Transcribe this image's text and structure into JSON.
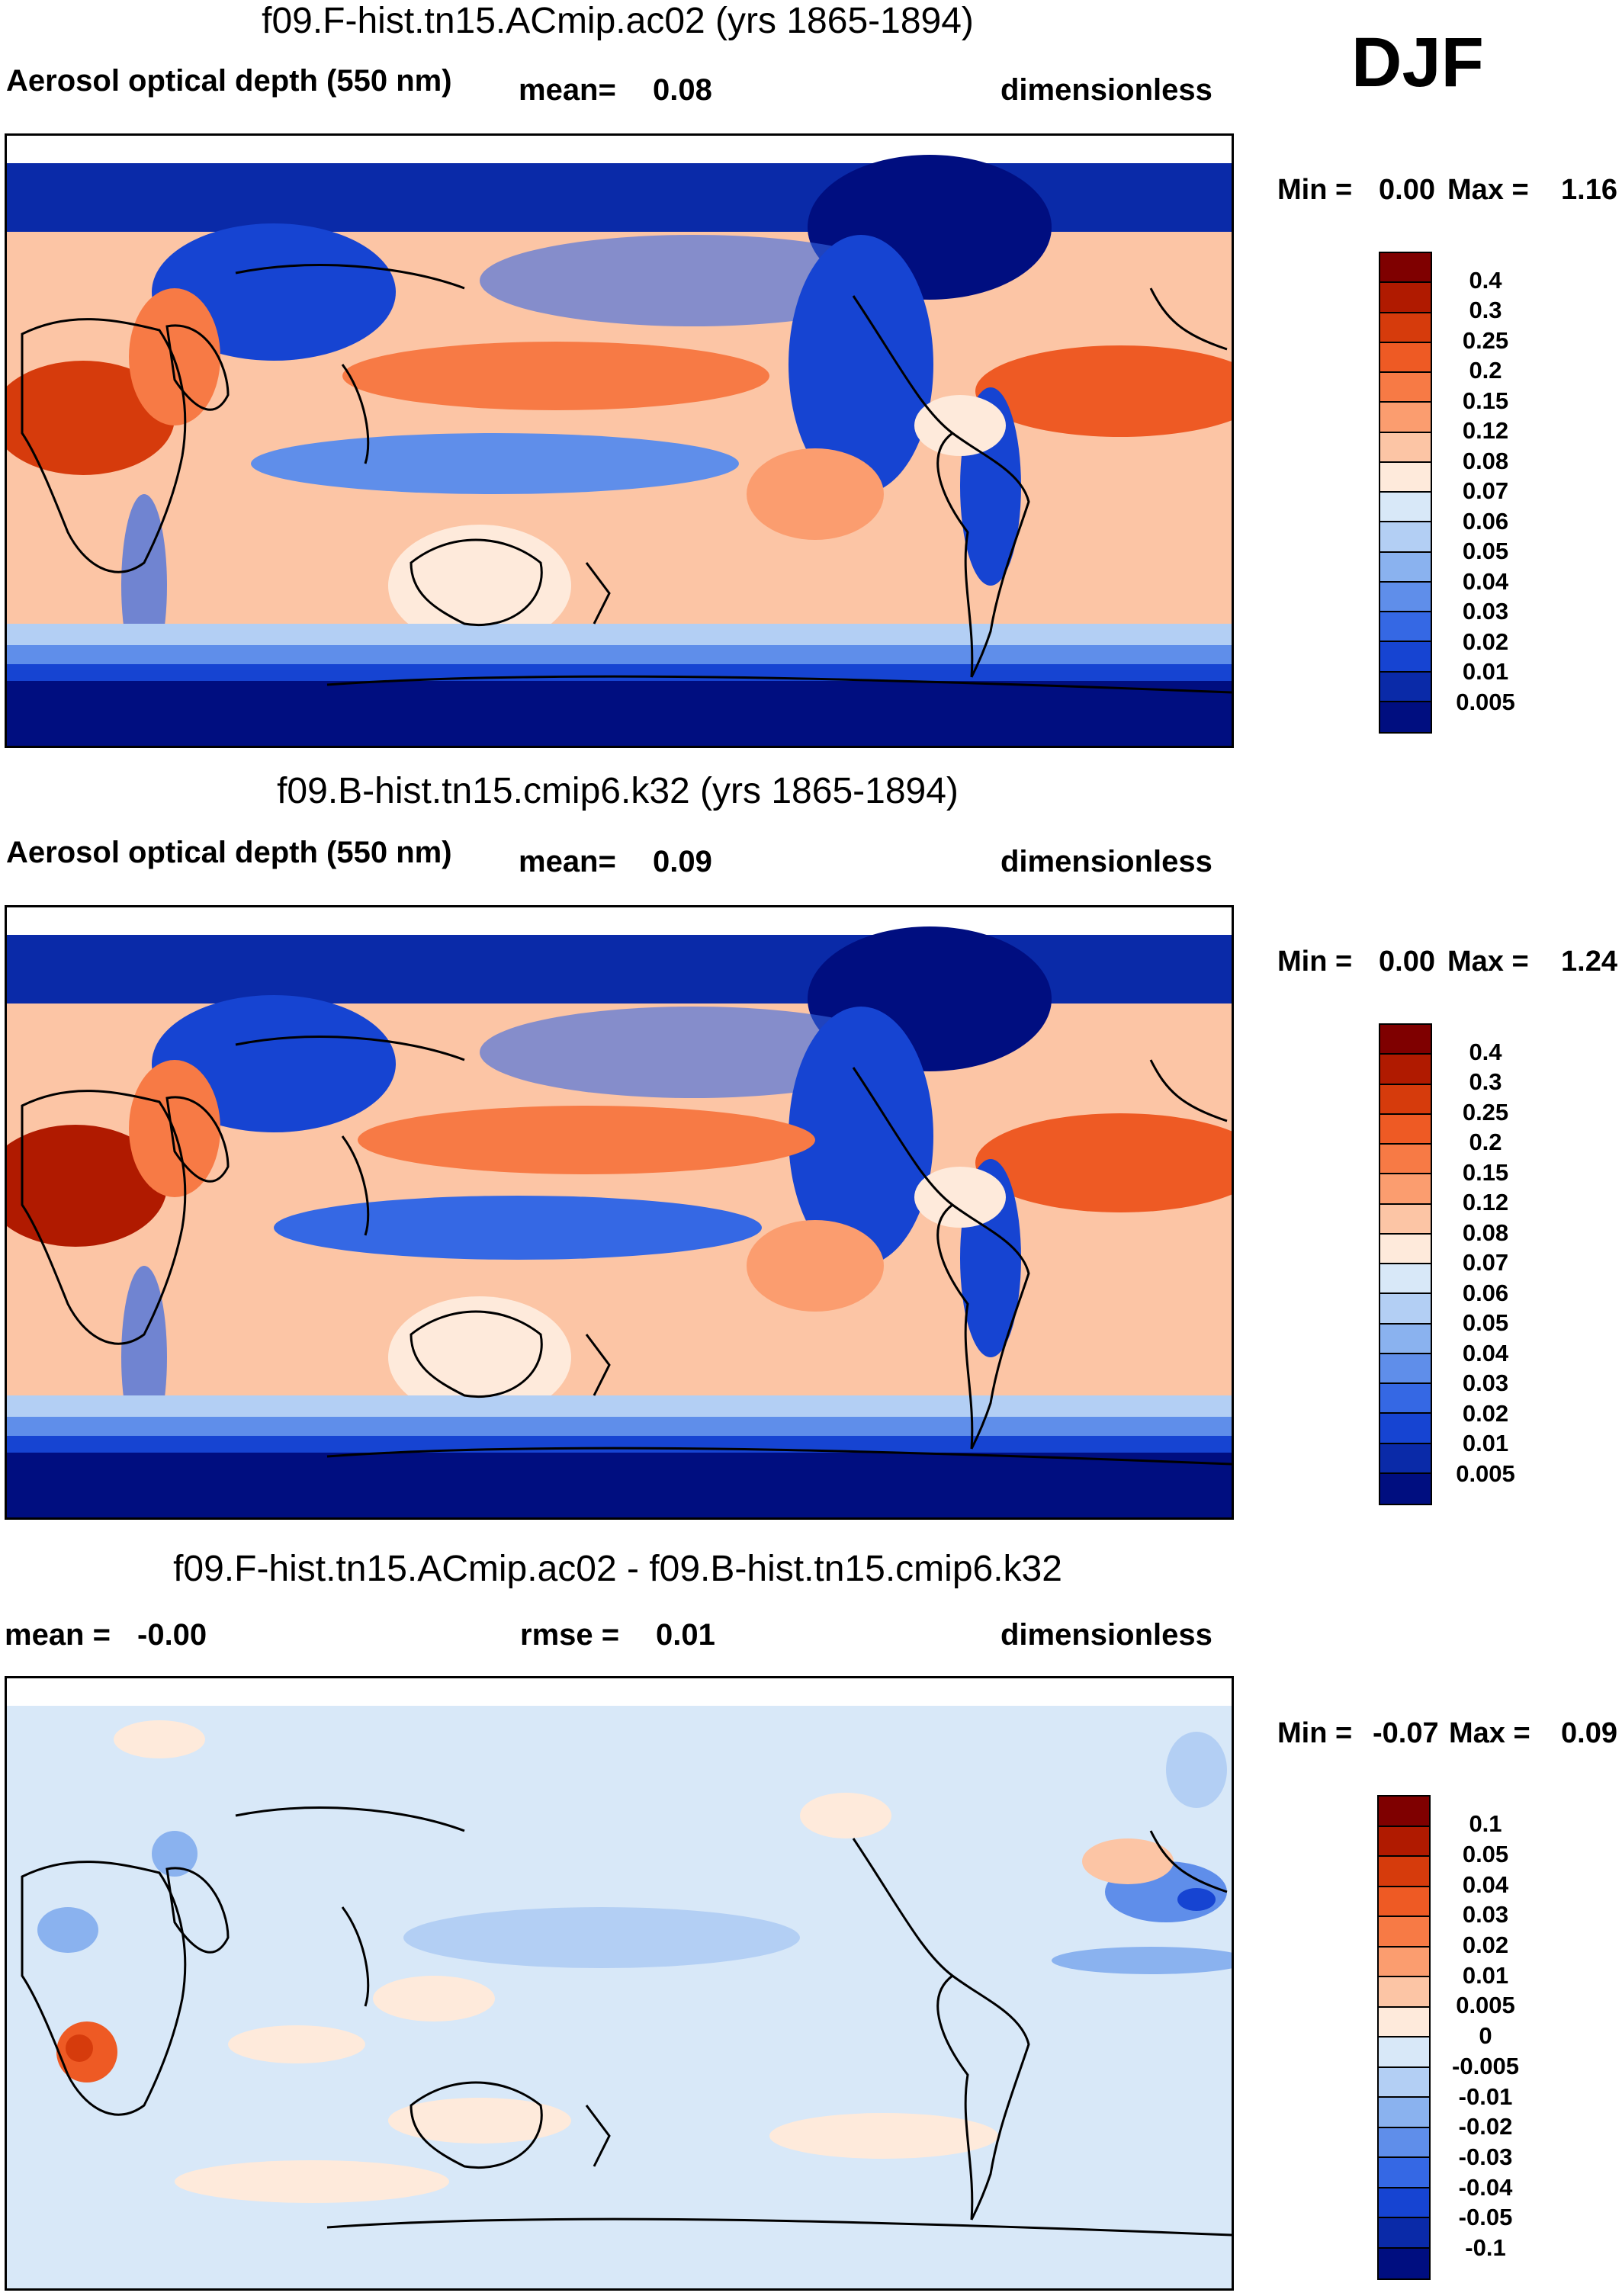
{
  "season": "DJF",
  "panels": [
    {
      "title": "f09.F-hist.tn15.ACmip.ac02 (yrs 1865-1894)",
      "variable": "Aerosol optical depth (550 nm)",
      "stat_label": "mean=",
      "stat_value": "0.08",
      "units": "dimensionless",
      "min_label": "Min =",
      "min_value": "0.00",
      "max_label": "Max =",
      "max_value": "1.16",
      "colorbar": {
        "labels": [
          "0.4",
          "0.3",
          "0.25",
          "0.2",
          "0.15",
          "0.12",
          "0.08",
          "0.07",
          "0.06",
          "0.05",
          "0.04",
          "0.03",
          "0.02",
          "0.01",
          "0.005"
        ],
        "colors": [
          "#7f0000",
          "#b01a00",
          "#d63b0c",
          "#ee5a24",
          "#f77a45",
          "#fb9d6f",
          "#fcc5a5",
          "#feeadb",
          "#d8e8f8",
          "#b3cff4",
          "#8ab2ef",
          "#5f8eea",
          "#3568e4",
          "#1644d2",
          "#0a2aa8",
          "#000e80"
        ]
      }
    },
    {
      "title": "f09.B-hist.tn15.cmip6.k32 (yrs 1865-1894)",
      "variable": "Aerosol optical depth (550 nm)",
      "stat_label": "mean=",
      "stat_value": "0.09",
      "units": "dimensionless",
      "min_label": "Min =",
      "min_value": "0.00",
      "max_label": "Max =",
      "max_value": "1.24",
      "colorbar": {
        "labels": [
          "0.4",
          "0.3",
          "0.25",
          "0.2",
          "0.15",
          "0.12",
          "0.08",
          "0.07",
          "0.06",
          "0.05",
          "0.04",
          "0.03",
          "0.02",
          "0.01",
          "0.005"
        ],
        "colors": [
          "#7f0000",
          "#b01a00",
          "#d63b0c",
          "#ee5a24",
          "#f77a45",
          "#fb9d6f",
          "#fcc5a5",
          "#feeadb",
          "#d8e8f8",
          "#b3cff4",
          "#8ab2ef",
          "#5f8eea",
          "#3568e4",
          "#1644d2",
          "#0a2aa8",
          "#000e80"
        ]
      }
    },
    {
      "title": "f09.F-hist.tn15.ACmip.ac02 - f09.B-hist.tn15.cmip6.k32",
      "mean_label": "mean =",
      "mean_value": "-0.00",
      "rmse_label": "rmse =",
      "rmse_value": "0.01",
      "units": "dimensionless",
      "min_label": "Min =",
      "min_value": "-0.07",
      "max_label": "Max =",
      "max_value": "0.09",
      "colorbar": {
        "labels": [
          "0.1",
          "0.05",
          "0.04",
          "0.03",
          "0.02",
          "0.01",
          "0.005",
          "0",
          "-0.005",
          "-0.01",
          "-0.02",
          "-0.03",
          "-0.04",
          "-0.05",
          "-0.1"
        ],
        "colors": [
          "#7f0000",
          "#b01a00",
          "#d63b0c",
          "#ee5a24",
          "#f77a45",
          "#fb9d6f",
          "#fcc5a5",
          "#feeadb",
          "#d8e8f8",
          "#b3cff4",
          "#8ab2ef",
          "#5f8eea",
          "#3568e4",
          "#1644d2",
          "#0a2aa8",
          "#000e80"
        ]
      }
    }
  ]
}
